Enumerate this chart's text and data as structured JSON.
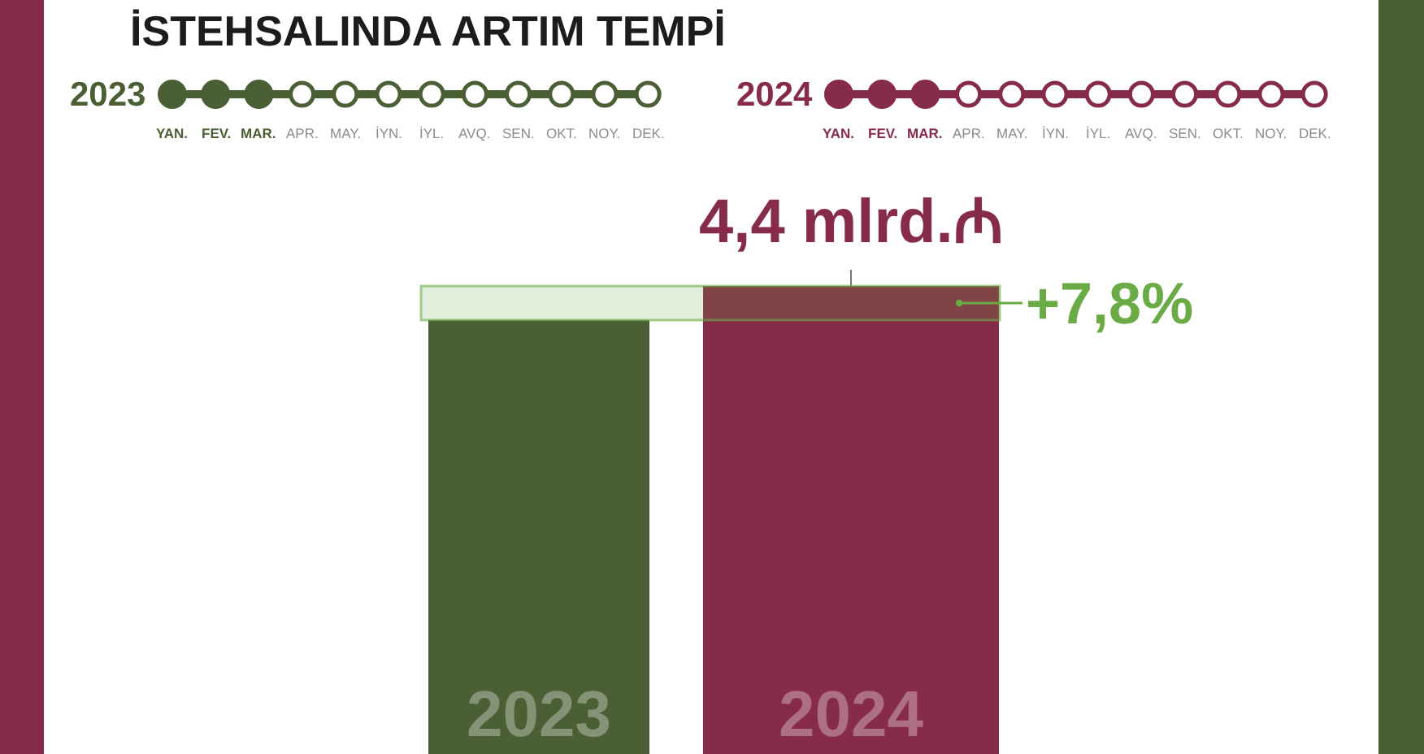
{
  "chart_data": {
    "type": "bar",
    "title": "İSTEHSALINDA ARTIM TEMPİ",
    "categories": [
      "2023",
      "2024"
    ],
    "values": [
      4.08,
      4.4
    ],
    "colors": [
      "#4b5f35",
      "#862b48"
    ],
    "value_labels": [
      null,
      "4,4 mlrd.₼"
    ],
    "bands": [
      {
        "axis": "y",
        "from": 4.08,
        "to": 4.4,
        "label": "+7,8%",
        "color": "#6aab46"
      }
    ],
    "annotations": [
      "YAN.",
      "FEV.",
      "MAR.",
      "APR.",
      "MAY.",
      "İYN.",
      "İYL.",
      "AVQ.",
      "SEN.",
      "OKT.",
      "NOY.",
      "DEK.",
      "YAN.",
      "FEV.",
      "MAR.",
      "APR.",
      "MAY.",
      "İYN.",
      "İYL.",
      "AVQ.",
      "SEN.",
      "OKT.",
      "NOY.",
      "DEK."
    ]
  }
}
